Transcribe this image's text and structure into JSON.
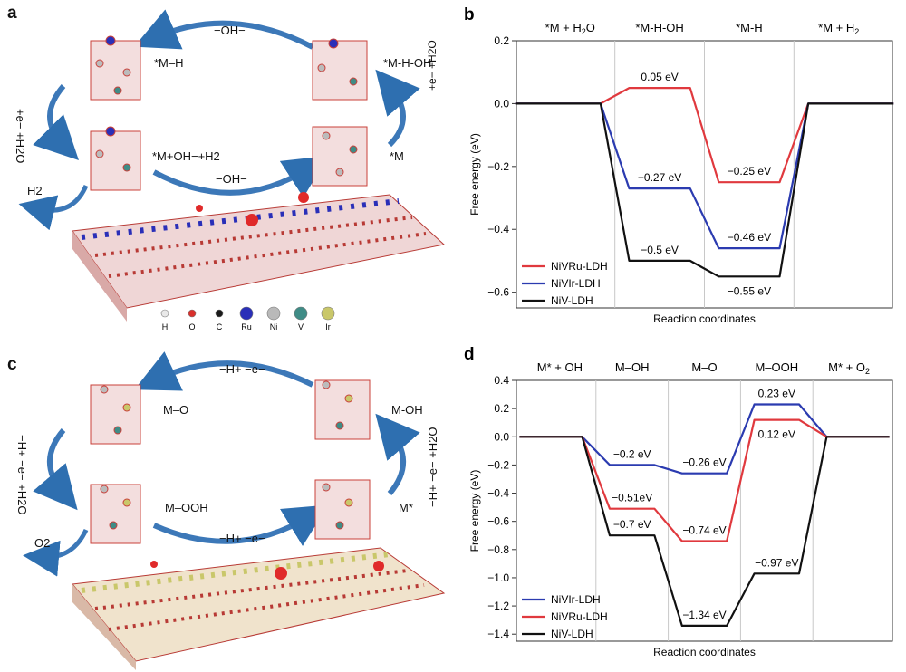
{
  "panels": {
    "a": {
      "label": "a",
      "cycle": {
        "top_arrow": "−OH−",
        "bottom_arrow": "−OH−",
        "left_arrow": "+e− +H2O",
        "right_arrow": "+e− +H2O",
        "states": {
          "top_left": "*M–H",
          "top_right": "*M-H-OH",
          "bottom_left": "*M+OH−+H2",
          "bottom_right": "*M"
        },
        "product": "H2"
      },
      "legend": [
        "H",
        "O",
        "C",
        "Ru",
        "Ni",
        "V",
        "Ir"
      ],
      "legend_colors": [
        "#e9e9e9",
        "#d9302c",
        "#1a1a1a",
        "#2a2fb8",
        "#b9b9b9",
        "#3f8c86",
        "#c9c76a"
      ]
    },
    "c": {
      "label": "c",
      "cycle": {
        "top_arrow": "−H+ −e−",
        "bottom_arrow": "−H+ −e−",
        "left_arrow": "−H+ −e− +H2O",
        "right_arrow": "−H+ −e− +H2O",
        "states": {
          "top_left": "M–O",
          "top_right": "M-OH",
          "bottom_left": "M–OOH",
          "bottom_right": "M*"
        },
        "product": "O2"
      }
    }
  },
  "chart_data": [
    {
      "label": "b",
      "type": "line",
      "title": "",
      "xlabel": "Reaction coordinates",
      "ylabel": "Free energy (eV)",
      "ylim": [
        -0.65,
        0.2
      ],
      "yticks": [
        "0.2",
        "0.0",
        "−0.2",
        "−0.4",
        "−0.6"
      ],
      "ytick_values": [
        0.2,
        0.0,
        -0.2,
        -0.4,
        -0.6
      ],
      "step_labels": [
        "*M + H2O",
        "*M-H-OH",
        "*M-H",
        "*M + H2"
      ],
      "legend_position": "bottom-left",
      "series": [
        {
          "name": "NiVRu-LDH",
          "color": "#e0393e",
          "values": [
            0,
            0.05,
            -0.25,
            0
          ],
          "annotations": [
            {
              "step": 1,
              "text": "0.05 eV"
            },
            {
              "step": 2,
              "text": "−0.25 eV"
            }
          ]
        },
        {
          "name": "NiVIr-LDH",
          "color": "#2b3bb0",
          "values": [
            0,
            -0.27,
            -0.46,
            0
          ],
          "annotations": [
            {
              "step": 1,
              "text": "−0.27 eV"
            },
            {
              "step": 2,
              "text": "−0.46 eV"
            }
          ]
        },
        {
          "name": "NiV-LDH",
          "color": "#111111",
          "values": [
            0,
            -0.5,
            -0.55,
            0
          ],
          "annotations": [
            {
              "step": 1,
              "text": "−0.5 eV"
            },
            {
              "step": 2,
              "text": "−0.55 eV"
            }
          ]
        }
      ]
    },
    {
      "label": "d",
      "type": "line",
      "title": "",
      "xlabel": "Reaction coordinates",
      "ylabel": "Free energy (eV)",
      "ylim": [
        -1.45,
        0.4
      ],
      "yticks": [
        "0.4",
        "0.2",
        "0.0",
        "−0.2",
        "−0.4",
        "−0.6",
        "−0.8",
        "−1.0",
        "−1.2",
        "−1.4"
      ],
      "ytick_values": [
        0.4,
        0.2,
        0.0,
        -0.2,
        -0.4,
        -0.6,
        -0.8,
        -1.0,
        -1.2,
        -1.4
      ],
      "step_labels": [
        "M* + OH",
        "M–OH",
        "M–O",
        "M–OOH",
        "M* + O2"
      ],
      "legend_position": "bottom-left",
      "series": [
        {
          "name": "NiVIr-LDH",
          "color": "#2b3bb0",
          "values": [
            0,
            -0.2,
            -0.26,
            0.23,
            0
          ],
          "annotations": [
            {
              "step": 1,
              "text": "−0.2 eV"
            },
            {
              "step": 2,
              "text": "−0.26 eV"
            },
            {
              "step": 3,
              "text": "0.23 eV"
            }
          ]
        },
        {
          "name": "NiVRu-LDH",
          "color": "#e0393e",
          "values": [
            0,
            -0.51,
            -0.74,
            0.12,
            0
          ],
          "annotations": [
            {
              "step": 1,
              "text": "−0.51eV"
            },
            {
              "step": 2,
              "text": "−0.74 eV"
            },
            {
              "step": 3,
              "text": "0.12 eV"
            }
          ]
        },
        {
          "name": "NiV-LDH",
          "color": "#111111",
          "values": [
            0,
            -0.7,
            -1.34,
            -0.97,
            0
          ],
          "annotations": [
            {
              "step": 1,
              "text": "−0.7 eV"
            },
            {
              "step": 2,
              "text": "−1.34 eV"
            },
            {
              "step": 3,
              "text": "−0.97 eV"
            }
          ]
        }
      ]
    }
  ]
}
